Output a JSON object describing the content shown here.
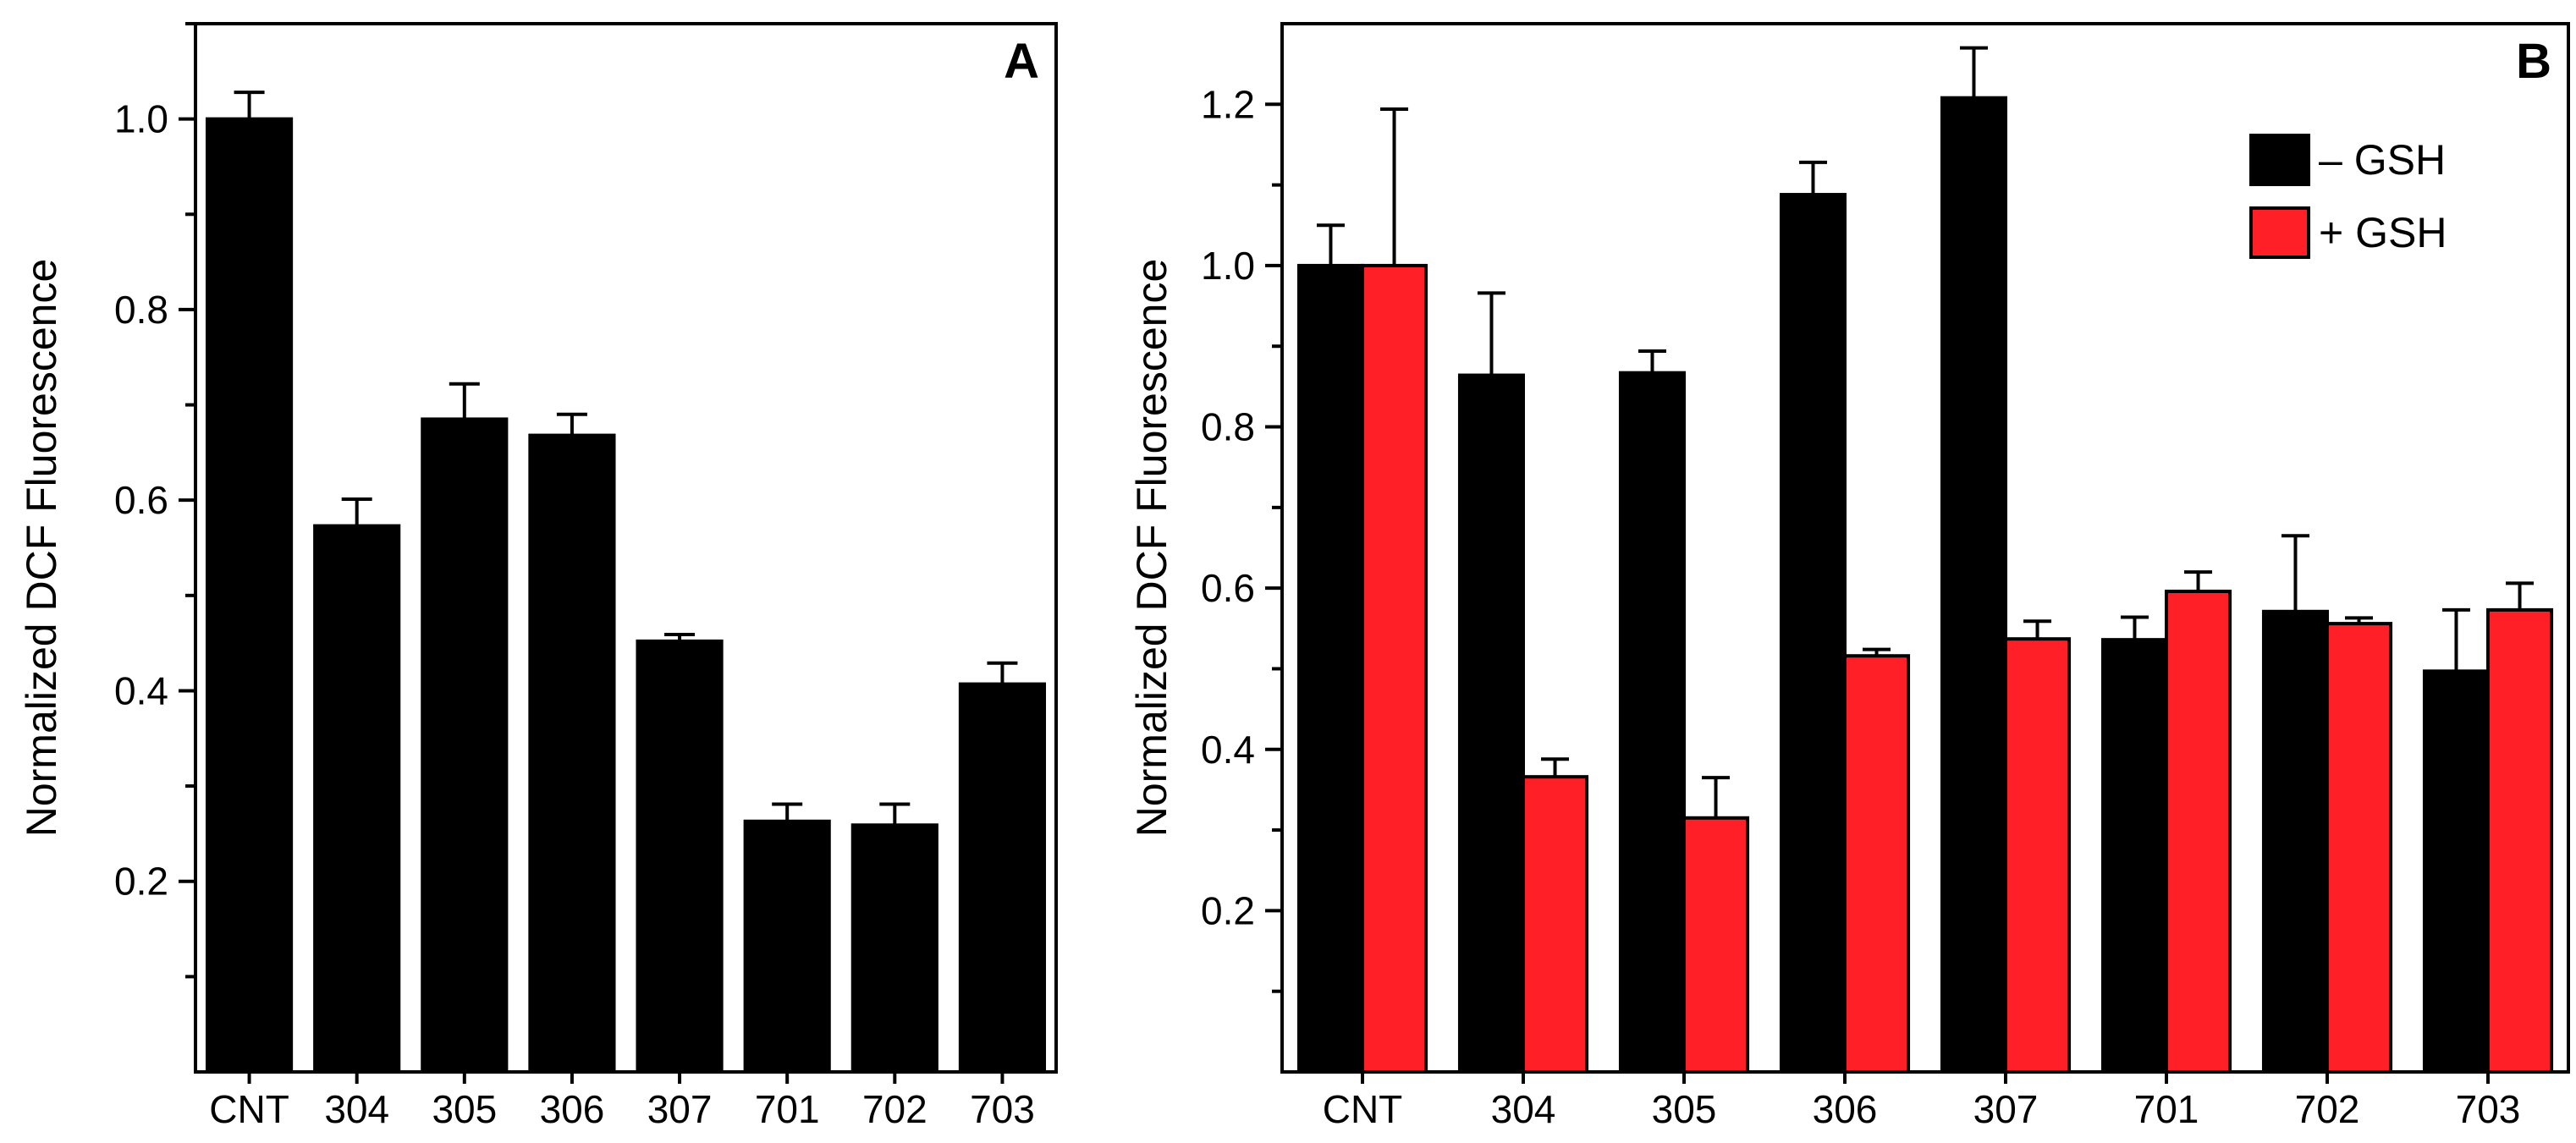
{
  "chart_data": [
    {
      "type": "bar",
      "panel_label": "A",
      "title": "",
      "xlabel": "",
      "ylabel": "Normalized DCF Fluorescence",
      "ylim": [
        0.0,
        1.1
      ],
      "yticks": [
        "0.2",
        "0.4",
        "0.6",
        "0.8",
        "1.0"
      ],
      "grid": false,
      "categories": [
        "CNT",
        "304",
        "305",
        "306",
        "307",
        "701",
        "702",
        "703"
      ],
      "series": [
        {
          "name": "",
          "color": "#000000",
          "values": [
            1.0,
            0.573,
            0.685,
            0.668,
            0.452,
            0.263,
            0.259,
            0.407
          ],
          "errors": [
            0.028,
            0.028,
            0.037,
            0.022,
            0.007,
            0.018,
            0.022,
            0.022
          ]
        }
      ]
    },
    {
      "type": "bar",
      "panel_label": "B",
      "title": "",
      "xlabel": "",
      "ylabel": "Normalized DCF Fluorescence",
      "ylim": [
        0.0,
        1.3
      ],
      "yticks": [
        "0.2",
        "0.4",
        "0.6",
        "0.8",
        "1.0",
        "1.2"
      ],
      "grid": false,
      "legend_position": "top-right",
      "categories": [
        "CNT",
        "304",
        "305",
        "306",
        "307",
        "701",
        "702",
        "703"
      ],
      "series": [
        {
          "name": "– GSH",
          "color": "#000000",
          "values": [
            1.0,
            0.864,
            0.867,
            1.088,
            1.208,
            0.536,
            0.571,
            0.497
          ],
          "errors": [
            0.05,
            0.102,
            0.027,
            0.04,
            0.062,
            0.028,
            0.094,
            0.076
          ]
        },
        {
          "name": "+ GSH",
          "color": "#ff1f26",
          "values": [
            1.0,
            0.366,
            0.315,
            0.516,
            0.537,
            0.596,
            0.556,
            0.573
          ],
          "errors": [
            0.194,
            0.022,
            0.05,
            0.008,
            0.022,
            0.024,
            0.007,
            0.033
          ]
        }
      ]
    }
  ]
}
